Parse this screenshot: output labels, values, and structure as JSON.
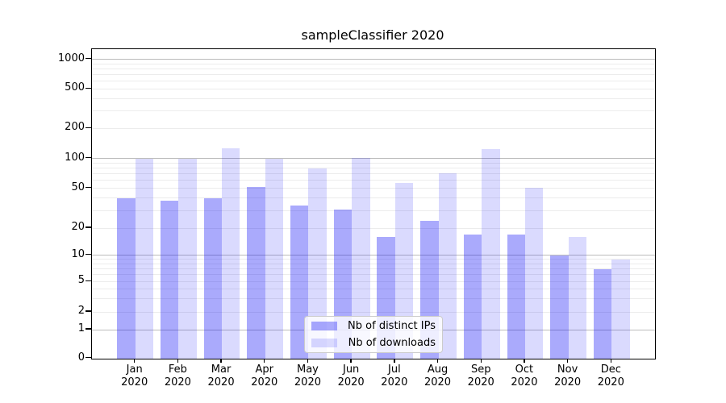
{
  "chart_data": {
    "type": "bar",
    "title": "sampleClassifier 2020",
    "categories": [
      "Jan",
      "Feb",
      "Mar",
      "Apr",
      "May",
      "Jun",
      "Jul",
      "Aug",
      "Sep",
      "Oct",
      "Nov",
      "Dec"
    ],
    "category_year": "2020",
    "series": [
      {
        "name": "Nb of distinct IPs",
        "color_hex": "#aaaaf7",
        "color_rgba": "rgba(10,10,245,0.345)",
        "values": [
          40,
          38,
          40,
          52,
          34,
          31,
          16,
          24,
          17,
          17,
          10,
          7
        ]
      },
      {
        "name": "Nb of downloads",
        "color_hex": "#dadafb",
        "color_rgba": "rgba(10,10,245,0.15)",
        "values": [
          101,
          101,
          128,
          100,
          80,
          102,
          57,
          72,
          126,
          51,
          16,
          9
        ]
      }
    ],
    "yscale": "symlog",
    "ytick_values": [
      0,
      1,
      2,
      5,
      10,
      20,
      50,
      100,
      200,
      500,
      1000
    ],
    "ytick_labels": [
      "0",
      "1",
      "2",
      "5",
      "10",
      "20",
      "50",
      "100",
      "200",
      "500",
      "1000"
    ],
    "ylim": [
      0,
      1270
    ],
    "xlabel": "",
    "ylabel": "",
    "grid": true,
    "legend_position": "lower-center"
  }
}
